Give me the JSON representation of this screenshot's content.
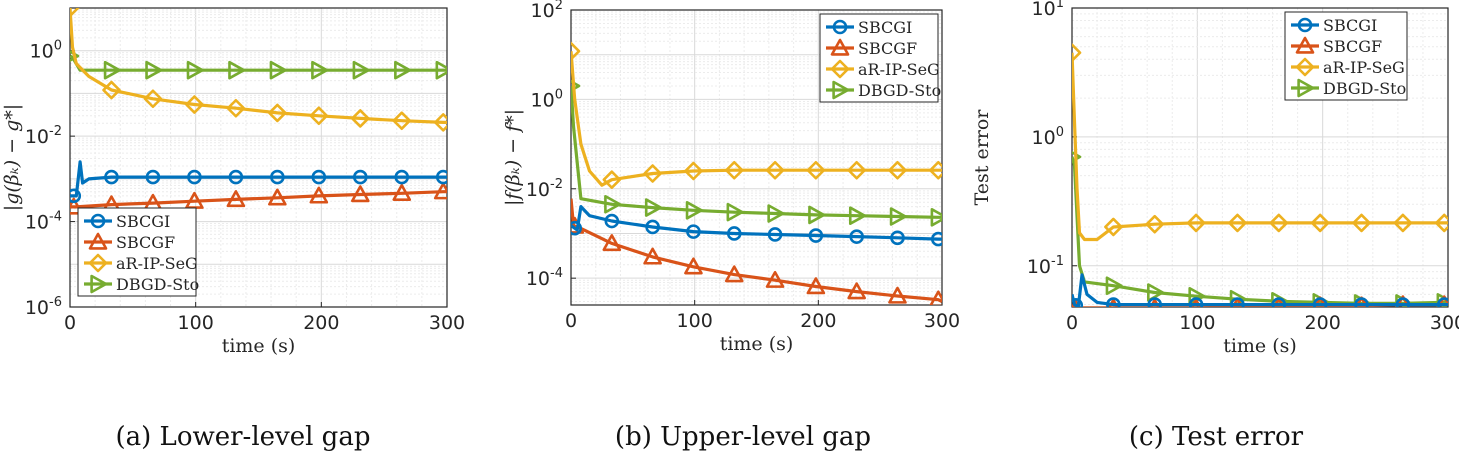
{
  "colors": {
    "SBCGI": "#0072BD",
    "SBCGF": "#D95319",
    "aR-IP-SeG": "#EDB120",
    "DBGD-Sto": "#77AC30"
  },
  "chart_data": [
    {
      "type": "line",
      "caption": "(a) Lower-level gap",
      "xlabel": "time (s)",
      "ylabel": "|g(βₖ) − g*|",
      "yscale": "log",
      "xlim": [
        0,
        300
      ],
      "ylim_exp": [
        -6,
        1
      ],
      "grid": true,
      "xticks": [
        "0",
        "100",
        "200",
        "300"
      ],
      "yticks": [
        {
          "e": 0,
          "label": "10^0"
        },
        {
          "e": -2,
          "label": "10^-2"
        },
        {
          "e": -4,
          "label": "10^-4"
        },
        {
          "e": -6,
          "label": "10^-6"
        }
      ],
      "legend": {
        "position": "bottom-left"
      },
      "series": [
        {
          "name": "SBCGI",
          "marker": "circle",
          "x": [
            0,
            5,
            8,
            10,
            15,
            33,
            66,
            99,
            132,
            165,
            198,
            231,
            264,
            297,
            300
          ],
          "y": [
            0.0004,
            0.0004,
            0.0025,
            0.0008,
            0.001,
            0.0011,
            0.0011,
            0.0011,
            0.0011,
            0.0011,
            0.0011,
            0.0011,
            0.0011,
            0.0011,
            0.0011
          ]
        },
        {
          "name": "SBCGF",
          "marker": "triangle",
          "x": [
            0,
            5,
            33,
            66,
            99,
            132,
            165,
            198,
            231,
            264,
            297,
            300
          ],
          "y": [
            0.00022,
            0.00022,
            0.00025,
            0.00027,
            0.0003,
            0.00033,
            0.00036,
            0.0004,
            0.00043,
            0.00046,
            0.0005,
            0.0005
          ]
        },
        {
          "name": "aR-IP-SeG",
          "marker": "diamond",
          "x": [
            0,
            2,
            5,
            15,
            33,
            66,
            99,
            132,
            165,
            198,
            231,
            264,
            297,
            300
          ],
          "y": [
            10,
            1.2,
            0.5,
            0.25,
            0.12,
            0.075,
            0.055,
            0.045,
            0.035,
            0.03,
            0.026,
            0.023,
            0.021,
            0.021
          ]
        },
        {
          "name": "DBGD-Sto",
          "marker": "triangle-right",
          "x": [
            0,
            2,
            8,
            33,
            66,
            99,
            132,
            165,
            198,
            231,
            264,
            297,
            300
          ],
          "y": [
            0.75,
            0.7,
            0.35,
            0.35,
            0.35,
            0.35,
            0.35,
            0.35,
            0.35,
            0.35,
            0.35,
            0.35,
            0.35
          ]
        }
      ]
    },
    {
      "type": "line",
      "caption": "(b) Upper-level gap",
      "xlabel": "time (s)",
      "ylabel": "|f(βₖ) − f*|",
      "yscale": "log",
      "xlim": [
        0,
        300
      ],
      "ylim_exp": [
        -4.6,
        2
      ],
      "grid": true,
      "xticks": [
        "0",
        "100",
        "200",
        "300"
      ],
      "yticks": [
        {
          "e": 2,
          "label": "10^2"
        },
        {
          "e": 0,
          "label": "10^0"
        },
        {
          "e": -2,
          "label": "10^-2"
        },
        {
          "e": -4,
          "label": "10^-4"
        }
      ],
      "legend": {
        "position": "top-right"
      },
      "series": [
        {
          "name": "SBCGI",
          "marker": "circle",
          "x": [
            0,
            5,
            8,
            15,
            33,
            66,
            99,
            132,
            165,
            198,
            231,
            264,
            297,
            300
          ],
          "y": [
            0.0015,
            0.0012,
            0.004,
            0.0025,
            0.0019,
            0.0014,
            0.0011,
            0.001,
            0.00095,
            0.0009,
            0.00085,
            0.0008,
            0.00075,
            0.00075
          ]
        },
        {
          "name": "SBCGF",
          "marker": "triangle",
          "x": [
            0,
            2,
            8,
            33,
            66,
            99,
            132,
            165,
            198,
            231,
            264,
            297,
            300
          ],
          "y": [
            0.006,
            0.0015,
            0.0013,
            0.0006,
            0.0003,
            0.00018,
            0.00012,
            9e-05,
            6.5e-05,
            5e-05,
            4e-05,
            3.3e-05,
            3e-05
          ]
        },
        {
          "name": "aR-IP-SeG",
          "marker": "diamond",
          "x": [
            0,
            3,
            8,
            15,
            25,
            33,
            66,
            99,
            132,
            165,
            198,
            231,
            264,
            297,
            300
          ],
          "y": [
            12,
            1,
            0.1,
            0.025,
            0.012,
            0.016,
            0.022,
            0.025,
            0.026,
            0.026,
            0.026,
            0.026,
            0.026,
            0.026,
            0.026
          ]
        },
        {
          "name": "DBGD-Sto",
          "marker": "triangle-right",
          "x": [
            0,
            2,
            8,
            33,
            66,
            99,
            132,
            165,
            198,
            231,
            264,
            297,
            300
          ],
          "y": [
            2,
            0.25,
            0.006,
            0.0045,
            0.0038,
            0.0033,
            0.003,
            0.0028,
            0.0026,
            0.0025,
            0.0024,
            0.0023,
            0.0023
          ]
        }
      ]
    },
    {
      "type": "line",
      "caption": "(c) Test error",
      "xlabel": "time (s)",
      "ylabel": "Test error",
      "yscale": "log",
      "xlim": [
        0,
        300
      ],
      "ylim_exp": [
        -1.32,
        1
      ],
      "grid": true,
      "xticks": [
        "0",
        "100",
        "200",
        "300"
      ],
      "yticks": [
        {
          "e": 1,
          "label": "10^1"
        },
        {
          "e": 0,
          "label": "10^0"
        },
        {
          "e": -1,
          "label": "10^-1"
        }
      ],
      "legend": {
        "position": "top-right"
      },
      "series": [
        {
          "name": "SBCGI",
          "marker": "circle",
          "x": [
            0,
            2,
            5,
            8,
            12,
            20,
            33,
            66,
            99,
            132,
            165,
            198,
            231,
            264,
            297,
            300
          ],
          "y": [
            0.06,
            0.05,
            0.048,
            0.085,
            0.06,
            0.052,
            0.05,
            0.05,
            0.05,
            0.05,
            0.05,
            0.05,
            0.05,
            0.05,
            0.05,
            0.05
          ]
        },
        {
          "name": "SBCGF",
          "marker": "triangle",
          "x": [
            0,
            3,
            8,
            33,
            66,
            99,
            132,
            165,
            198,
            231,
            264,
            297,
            300
          ],
          "y": [
            0.05,
            0.046,
            0.047,
            0.047,
            0.047,
            0.047,
            0.048,
            0.048,
            0.049,
            0.049,
            0.05,
            0.05,
            0.05
          ]
        },
        {
          "name": "aR-IP-SeG",
          "marker": "diamond",
          "x": [
            0,
            2,
            4,
            6,
            10,
            20,
            33,
            66,
            99,
            132,
            165,
            198,
            231,
            264,
            297,
            300
          ],
          "y": [
            4.5,
            1.3,
            0.4,
            0.18,
            0.16,
            0.16,
            0.2,
            0.21,
            0.215,
            0.215,
            0.215,
            0.215,
            0.215,
            0.215,
            0.215,
            0.215
          ]
        },
        {
          "name": "DBGD-Sto",
          "marker": "triangle-right",
          "x": [
            0,
            2,
            6,
            10,
            33,
            66,
            99,
            132,
            165,
            198,
            231,
            264,
            297,
            300
          ],
          "y": [
            0.7,
            0.6,
            0.1,
            0.075,
            0.07,
            0.062,
            0.058,
            0.055,
            0.053,
            0.052,
            0.051,
            0.051,
            0.052,
            0.055
          ]
        }
      ]
    }
  ]
}
